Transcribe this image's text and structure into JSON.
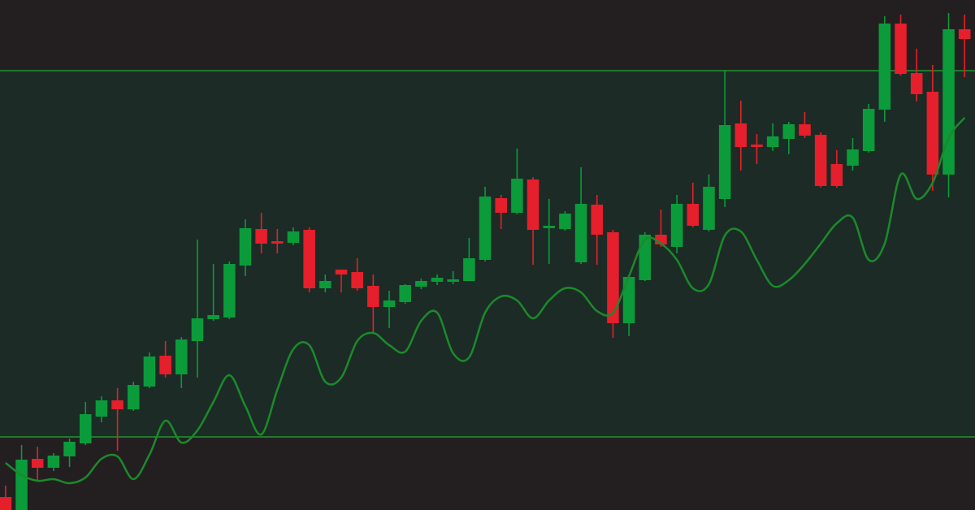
{
  "chart_data": {
    "type": "candlestick",
    "background": "#231f20",
    "up_color": "#0b9b3a",
    "down_color": "#e51f2b",
    "ylim": [
      0,
      628
    ],
    "xlim": [
      -0.35,
      60.65
    ],
    "range_band": [
      90,
      541
    ],
    "range_band_fill": "#1c2b26",
    "range_band_line": "#1e7a2c",
    "open": [
      16,
      0,
      63,
      52,
      66,
      82,
      115,
      135,
      124,
      152,
      190,
      167,
      208,
      235,
      237,
      301,
      346,
      331,
      329,
      345,
      273,
      296,
      293,
      276,
      250,
      256,
      275,
      281,
      283,
      282,
      308,
      384,
      366,
      407,
      347,
      346,
      305,
      376,
      342,
      230,
      283,
      339,
      324,
      377,
      345,
      383,
      476,
      450,
      447,
      457,
      475,
      462,
      426,
      424,
      442,
      493,
      599,
      538,
      515,
      413,
      592
    ],
    "high": [
      30,
      80,
      78,
      70,
      88,
      133,
      140,
      150,
      158,
      194,
      208,
      213,
      333,
      303,
      306,
      358,
      366,
      346,
      348,
      348,
      290,
      296,
      310,
      290,
      270,
      278,
      285,
      290,
      294,
      335,
      398,
      388,
      445,
      410,
      383,
      368,
      422,
      388,
      345,
      290,
      342,
      370,
      388,
      403,
      413,
      541,
      504,
      463,
      476,
      478,
      490,
      465,
      443,
      458,
      500,
      608,
      610,
      568,
      548,
      612,
      610
    ],
    "low": [
      0,
      0,
      36,
      48,
      53,
      80,
      108,
      73,
      122,
      150,
      163,
      150,
      163,
      233,
      235,
      288,
      316,
      316,
      326,
      268,
      268,
      268,
      270,
      218,
      224,
      254,
      272,
      277,
      278,
      282,
      306,
      346,
      364,
      302,
      303,
      344,
      303,
      302,
      212,
      214,
      282,
      324,
      316,
      348,
      343,
      373,
      418,
      426,
      442,
      438,
      458,
      397,
      397,
      418,
      440,
      478,
      535,
      503,
      393,
      385,
      533
    ],
    "close": [
      0,
      62,
      52,
      67,
      84,
      118,
      135,
      124,
      154,
      189,
      167,
      210,
      236,
      240,
      303,
      347,
      328,
      328,
      343,
      273,
      282,
      290,
      273,
      250,
      258,
      277,
      282,
      286,
      284,
      310,
      386,
      366,
      408,
      345,
      350,
      365,
      377,
      339,
      230,
      287,
      339,
      327,
      377,
      350,
      398,
      474,
      447,
      447,
      460,
      475,
      461,
      399,
      399,
      444,
      494,
      599,
      537,
      512,
      413,
      592,
      580
    ],
    "line": {
      "color": "#1b8a2b",
      "values": [
        58,
        43,
        36,
        38,
        33,
        40,
        63,
        66,
        38,
        68,
        110,
        83,
        98,
        133,
        166,
        128,
        93,
        148,
        198,
        203,
        158,
        163,
        208,
        218,
        203,
        195,
        233,
        243,
        193,
        188,
        243,
        263,
        258,
        236,
        258,
        273,
        268,
        245,
        243,
        288,
        333,
        328,
        308,
        273,
        278,
        338,
        343,
        308,
        276,
        283,
        303,
        328,
        353,
        360,
        308,
        328,
        413,
        383,
        403,
        458,
        483
      ]
    }
  }
}
